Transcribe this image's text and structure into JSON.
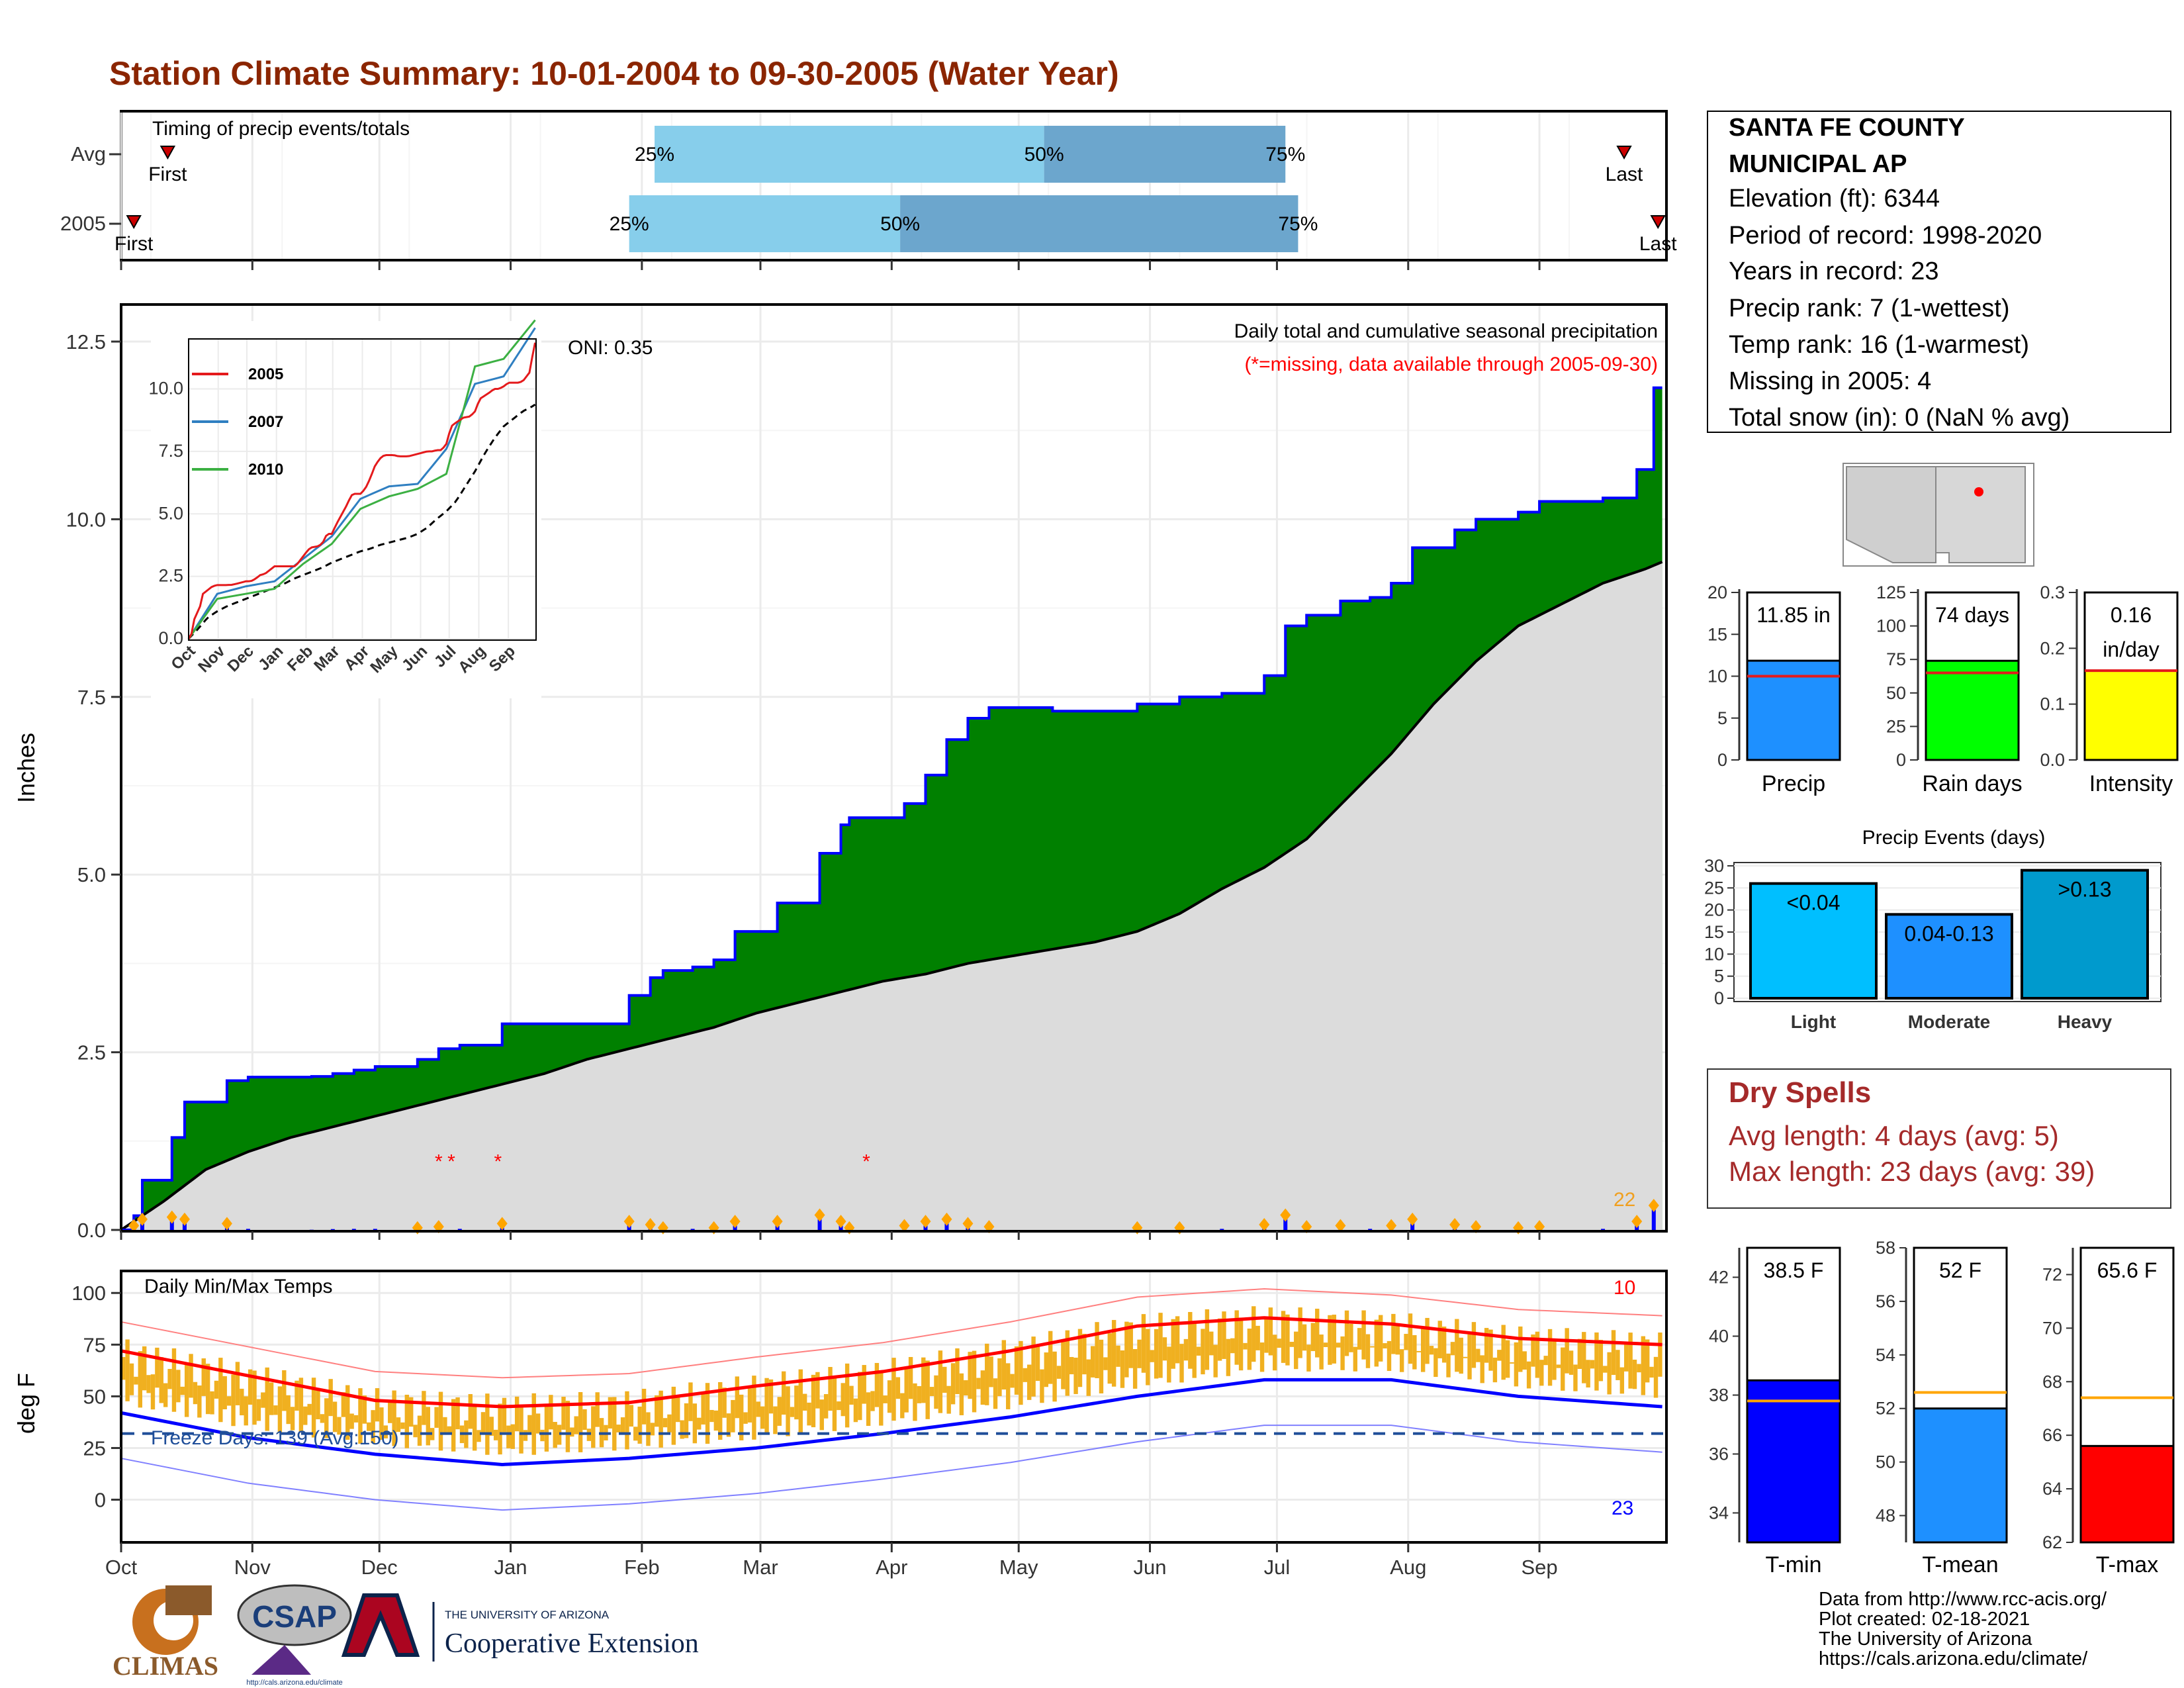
{
  "title": "Station Climate Summary: 10-01-2004 to 09-30-2005 (Water Year)",
  "station": {
    "name_line1": "SANTA FE COUNTY",
    "name_line2": "MUNICIPAL AP",
    "elevation": "Elevation (ft): 6344",
    "period": "Period of record: 1998-2020",
    "years": "Years in record: 23",
    "precip_rank": "Precip rank: 7 (1-wettest)",
    "temp_rank": "Temp rank: 16 (1-warmest)",
    "missing": "Missing in 2005: 4",
    "snow": "Total snow (in): 0 (NaN % avg)"
  },
  "months": [
    "Oct",
    "Nov",
    "Dec",
    "Jan",
    "Feb",
    "Mar",
    "Apr",
    "May",
    "Jun",
    "Jul",
    "Aug",
    "Sep"
  ],
  "timing": {
    "label": "Timing of precip events/totals",
    "rows": [
      "Avg",
      "2005"
    ],
    "first_label": "First",
    "last_label": "Last",
    "p25": "25%",
    "p50": "50%",
    "p75": "75%",
    "avg": {
      "first": 11,
      "p25": 126,
      "p50": 218,
      "p75": 275,
      "last": 355
    },
    "y2005": {
      "first": 3,
      "p25": 120,
      "p50": 184,
      "p75": 278,
      "last": 363
    }
  },
  "precip_panel": {
    "ylabel": "Inches",
    "yticks": [
      "0.0",
      "2.5",
      "5.0",
      "7.5",
      "10.0",
      "12.5"
    ],
    "caption1": "Daily total and cumulative seasonal precipitation",
    "caption2": "(*=missing, data available through 2005-09-30)",
    "oni": "ONI: 0.35",
    "count_label": "22",
    "missing_marker": "*",
    "inset_legend": [
      "2005",
      "2007",
      "2010"
    ],
    "inset_yticks": [
      "0.0",
      "2.5",
      "5.0",
      "7.5",
      "10.0"
    ]
  },
  "temp_panel": {
    "ylabel": "deg F",
    "label": "Daily Min/Max Temps",
    "freeze": "Freeze Days: 139 (Avg:150)",
    "yticks": [
      "0",
      "25",
      "50",
      "75",
      "100"
    ],
    "count_hi": "10",
    "count_lo": "23"
  },
  "mini_bars": {
    "precip": {
      "label": "Precip",
      "value_text": "11.85 in",
      "yticks": [
        "0",
        "5",
        "10",
        "15",
        "20"
      ]
    },
    "rain_days": {
      "label": "Rain days",
      "value_text": "74 days",
      "yticks": [
        "0",
        "25",
        "50",
        "75",
        "100",
        "125"
      ]
    },
    "intensity": {
      "label": "Intensity",
      "value_text1": "0.16",
      "value_text2": "in/day",
      "yticks": [
        "0.0",
        "0.1",
        "0.2",
        "0.3"
      ]
    }
  },
  "events": {
    "title": "Precip Events (days)",
    "yticks": [
      "0",
      "5",
      "10",
      "15",
      "20",
      "25",
      "30"
    ],
    "categories": [
      "Light",
      "Moderate",
      "Heavy"
    ],
    "bar_labels": [
      "<0.04",
      "0.04-0.13",
      ">0.13"
    ]
  },
  "dry_spells": {
    "title": "Dry Spells",
    "avg": "Avg length: 4 days (avg: 5)",
    "max": "Max length: 23 days (avg: 39)"
  },
  "temp_bars": {
    "tmin": {
      "label": "T-min",
      "value_text": "38.5 F",
      "yticks": [
        "34",
        "36",
        "38",
        "40",
        "42"
      ]
    },
    "tmean": {
      "label": "T-mean",
      "value_text": "52 F",
      "yticks": [
        "48",
        "50",
        "52",
        "54",
        "56",
        "58"
      ]
    },
    "tmax": {
      "label": "T-max",
      "value_text": "65.6 F",
      "yticks": [
        "62",
        "64",
        "66",
        "68",
        "70",
        "72"
      ]
    }
  },
  "footer": {
    "lines": [
      "Data from http://www.rcc-acis.org/",
      "Plot created: 02-18-2021",
      "The University of Arizona",
      "https://cals.arizona.edu/climate/"
    ],
    "logo1": "CLIMAS",
    "logo2": "CSAP",
    "logo2_url": "http://cals.arizona.edu/climate",
    "logo3_top": "THE UNIVERSITY OF ARIZONA",
    "logo3_bottom": "Cooperative Extension"
  },
  "colors": {
    "title": "#8B2500",
    "green": "#008000",
    "blue": "#0000FF",
    "grey": "#DCDCDC",
    "orange": "#F0B020",
    "red": "#FF0000",
    "light_blue": "#87CEEB",
    "mid_blue": "#6CA6CD",
    "precip_bar": "#1E90FF",
    "rain_bar": "#00FF00",
    "intensity_bar": "#FFFF00",
    "events_light": "#00BFFF",
    "events_mod": "#1E90FF",
    "events_heavy": "#009ACD"
  },
  "chart_data": [
    {
      "type": "area",
      "title": "Daily total and cumulative seasonal precipitation",
      "ylabel": "Inches",
      "ylim": [
        0,
        13
      ],
      "x_unit": "day of water year (Oct 1 = 0)",
      "series": [
        {
          "name": "2005",
          "x": [
            0,
            3,
            5,
            12,
            15,
            25,
            30,
            38,
            40,
            45,
            50,
            55,
            60,
            65,
            70,
            75,
            80,
            90,
            100,
            108,
            112,
            120,
            125,
            128,
            135,
            140,
            145,
            150,
            155,
            165,
            170,
            172,
            180,
            185,
            190,
            195,
            200,
            205,
            210,
            215,
            220,
            225,
            230,
            240,
            250,
            255,
            260,
            265,
            270,
            275,
            280,
            288,
            295,
            300,
            305,
            315,
            320,
            325,
            330,
            335,
            345,
            350,
            358,
            362,
            364
          ],
          "values": [
            0,
            0.2,
            0.7,
            1.3,
            1.8,
            2.1,
            2.15,
            2.15,
            2.15,
            2.16,
            2.2,
            2.25,
            2.3,
            2.3,
            2.4,
            2.55,
            2.6,
            2.9,
            2.9,
            2.9,
            2.9,
            3.3,
            3.55,
            3.65,
            3.7,
            3.8,
            4.2,
            4.2,
            4.6,
            5.3,
            5.7,
            5.8,
            5.8,
            6.0,
            6.4,
            6.9,
            7.2,
            7.35,
            7.35,
            7.35,
            7.3,
            7.3,
            7.3,
            7.4,
            7.5,
            7.5,
            7.55,
            7.55,
            7.8,
            8.5,
            8.65,
            8.85,
            8.9,
            9.1,
            9.6,
            9.85,
            10.0,
            10.0,
            10.1,
            10.25,
            10.25,
            10.3,
            10.7,
            11.85,
            11.85
          ]
        },
        {
          "name": "Average",
          "x": [
            0,
            10,
            20,
            30,
            40,
            50,
            60,
            70,
            80,
            90,
            100,
            110,
            120,
            130,
            140,
            150,
            160,
            170,
            180,
            190,
            200,
            210,
            220,
            230,
            240,
            250,
            260,
            270,
            280,
            290,
            300,
            310,
            320,
            330,
            340,
            350,
            360,
            364
          ],
          "values": [
            0,
            0.4,
            0.85,
            1.1,
            1.3,
            1.45,
            1.6,
            1.75,
            1.9,
            2.05,
            2.2,
            2.4,
            2.55,
            2.7,
            2.85,
            3.05,
            3.2,
            3.35,
            3.5,
            3.6,
            3.75,
            3.85,
            3.95,
            4.05,
            4.2,
            4.45,
            4.8,
            5.1,
            5.5,
            6.1,
            6.7,
            7.4,
            8.0,
            8.5,
            8.8,
            9.1,
            9.3,
            9.4
          ]
        }
      ]
    },
    {
      "type": "line",
      "title": "Daily Min/Max Temps",
      "ylabel": "deg F",
      "ylim": [
        -20,
        110
      ],
      "x_unit": "day of water year (Oct 1 = 0)",
      "series": [
        {
          "name": "Avg max",
          "x": [
            0,
            30,
            60,
            90,
            120,
            150,
            180,
            210,
            240,
            270,
            300,
            330,
            364
          ],
          "values": [
            72,
            60,
            48,
            45,
            47,
            55,
            62,
            72,
            84,
            88,
            85,
            78,
            75
          ]
        },
        {
          "name": "Avg min",
          "x": [
            0,
            30,
            60,
            90,
            120,
            150,
            180,
            210,
            240,
            270,
            300,
            330,
            364
          ],
          "values": [
            42,
            30,
            22,
            17,
            20,
            25,
            32,
            40,
            50,
            58,
            58,
            50,
            45
          ]
        }
      ]
    },
    {
      "type": "bar",
      "title": "Precip Events (days)",
      "categories": [
        "Light",
        "Moderate",
        "Heavy"
      ],
      "values": [
        26,
        19,
        29
      ],
      "ylim": [
        0,
        30
      ]
    },
    {
      "type": "bar",
      "categories": [
        "Precip",
        "Rain days",
        "Intensity"
      ],
      "values": [
        11.85,
        74,
        0.16
      ],
      "averages": [
        10,
        65,
        0.16
      ]
    },
    {
      "type": "bar",
      "categories": [
        "T-min",
        "T-mean",
        "T-max"
      ],
      "values": [
        38.5,
        52,
        65.6
      ],
      "averages": [
        37.8,
        52.6,
        67.4
      ]
    }
  ]
}
